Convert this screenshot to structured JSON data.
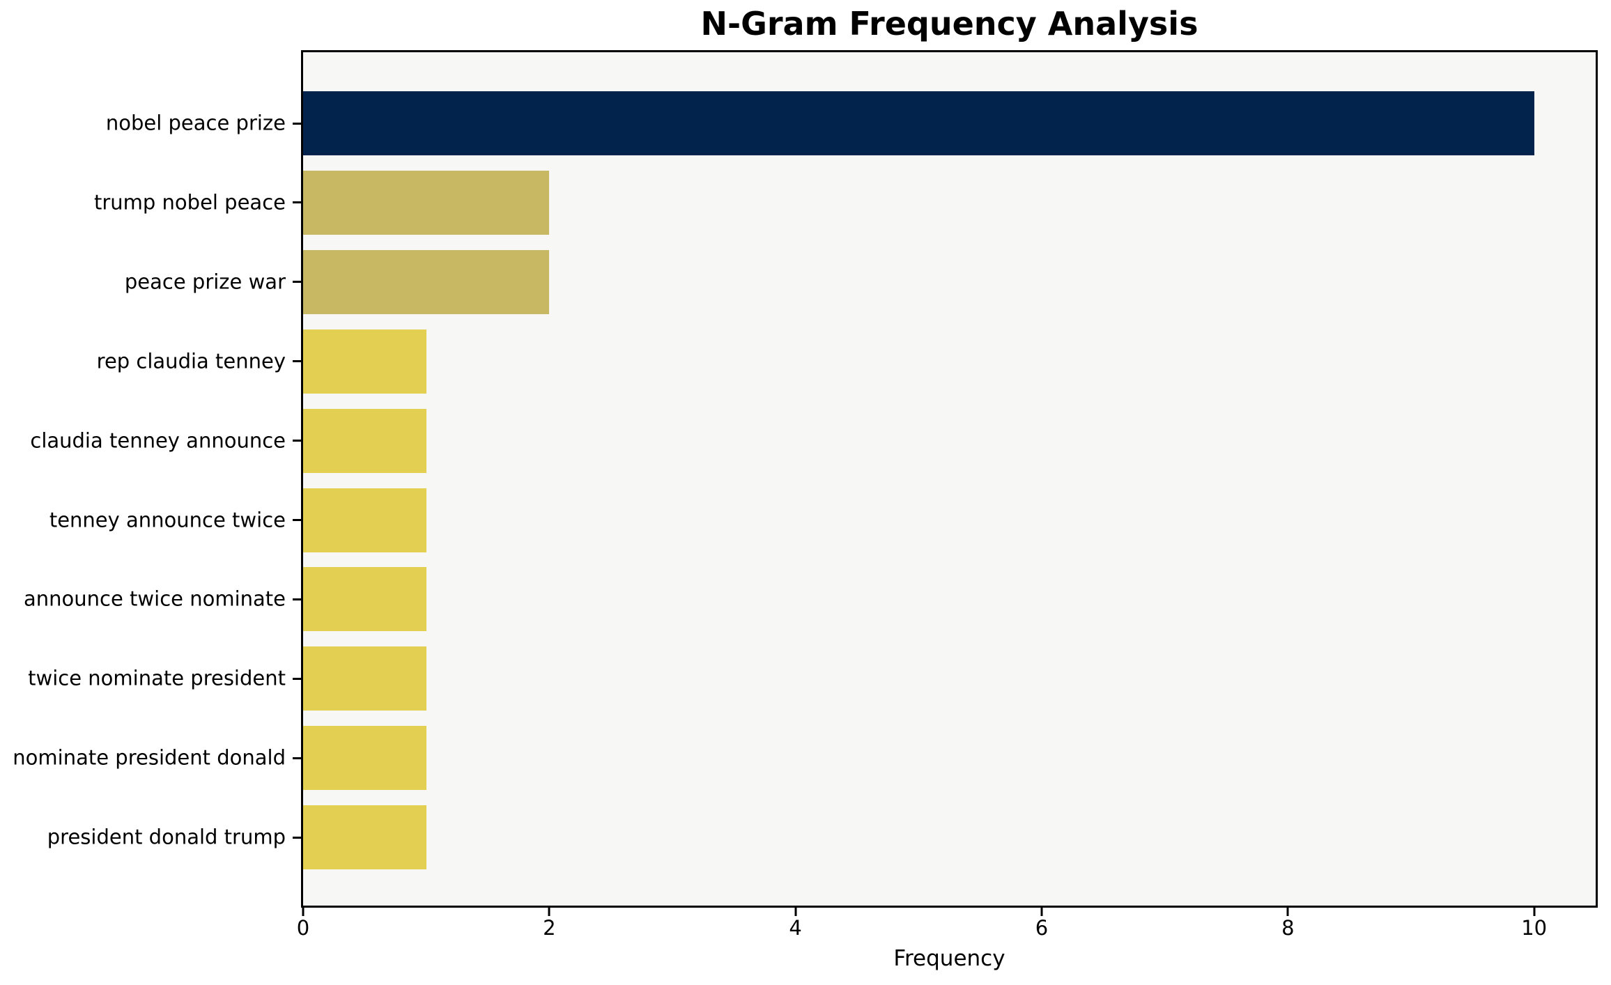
{
  "chart_data": {
    "type": "bar",
    "orientation": "horizontal",
    "title": "N-Gram Frequency Analysis",
    "xlabel": "Frequency",
    "ylabel": "",
    "categories": [
      "nobel peace prize",
      "trump nobel peace",
      "peace prize war",
      "rep claudia tenney",
      "claudia tenney announce",
      "tenney announce twice",
      "announce twice nominate",
      "twice nominate president",
      "nominate president donald",
      "president donald trump"
    ],
    "values": [
      10,
      2,
      2,
      1,
      1,
      1,
      1,
      1,
      1,
      1
    ],
    "bar_colors": [
      "#02234c",
      "#c8b763",
      "#c8b763",
      "#e3cf52",
      "#e3cf52",
      "#e3cf52",
      "#e3cf52",
      "#e3cf52",
      "#e3cf52",
      "#e3cf52"
    ],
    "xlim": [
      0,
      10.5
    ],
    "x_ticks": [
      0,
      2,
      4,
      6,
      8,
      10
    ],
    "grid": false,
    "legend": null,
    "colors": {
      "plot_background": "#f7f7f5",
      "figure_background": "#ffffff",
      "axis": "#000000",
      "text": "#000000"
    }
  }
}
